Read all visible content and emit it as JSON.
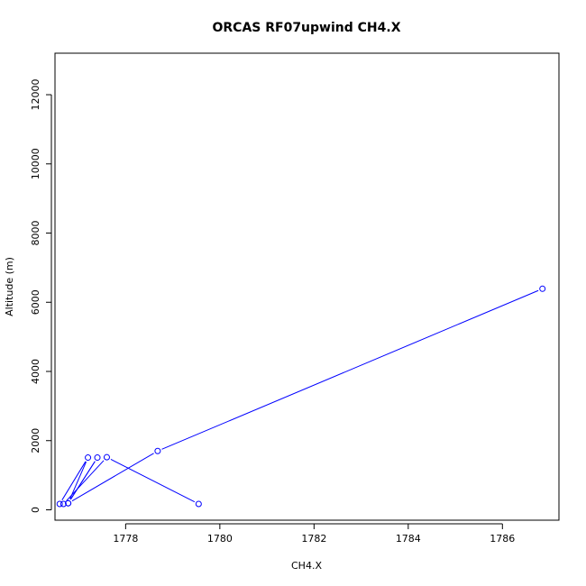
{
  "chart_data": {
    "type": "line",
    "title": "ORCAS RF07upwind CH4.X",
    "xlabel": "CH4.X",
    "ylabel": "Altitude (m)",
    "xlim": [
      1776.5,
      1787.2
    ],
    "ylim": [
      -300,
      13200
    ],
    "x_ticks": [
      "1778",
      "1780",
      "1782",
      "1784",
      "1786"
    ],
    "y_ticks": [
      "0",
      "2000",
      "4000",
      "6000",
      "8000",
      "10000",
      "12000"
    ],
    "grid": false,
    "series_color": "#0000ff",
    "series": [
      {
        "points": [
          {
            "x": 1786.85,
            "y": 6390
          },
          {
            "x": 1778.68,
            "y": 1700
          },
          {
            "x": 1776.78,
            "y": 190
          },
          {
            "x": 1777.4,
            "y": 1510
          },
          {
            "x": 1776.78,
            "y": 190
          },
          {
            "x": 1777.2,
            "y": 1510
          },
          {
            "x": 1776.6,
            "y": 170
          },
          {
            "x": 1776.68,
            "y": 170
          },
          {
            "x": 1777.6,
            "y": 1520
          },
          {
            "x": 1779.55,
            "y": 170
          }
        ]
      }
    ]
  }
}
